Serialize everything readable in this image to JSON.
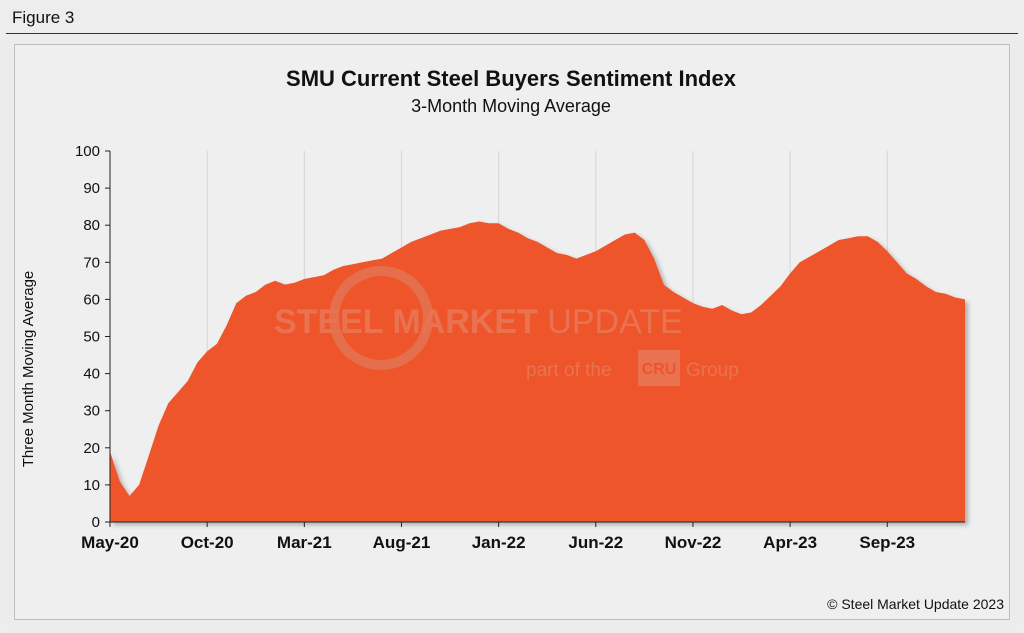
{
  "figure_label": "Figure 3",
  "copyright": "© Steel Market Update 2023",
  "watermark": {
    "line1_a": "STEEL MARKET",
    "line1_b": "UPDATE",
    "line2_a": "part of the",
    "line2_logo": "CRU",
    "line2_b": "Group"
  },
  "chart_data": {
    "type": "area",
    "title": "SMU Current Steel Buyers Sentiment Index",
    "subtitle": "3-Month Moving Average",
    "ylabel": "Three Month Moving Average",
    "xlabel": "",
    "ylim": [
      0,
      100
    ],
    "y_ticks": [
      0,
      10,
      20,
      30,
      40,
      50,
      60,
      70,
      80,
      90,
      100
    ],
    "x_tick_labels": [
      "May-20",
      "Oct-20",
      "Mar-21",
      "Aug-21",
      "Jan-22",
      "Jun-22",
      "Nov-22",
      "Apr-23",
      "Sep-23"
    ],
    "x_start": "2020-05",
    "x_end": "2023-09",
    "grid": "vertical",
    "color": "#ee5529",
    "series": [
      {
        "name": "",
        "values": [
          [
            0,
            19
          ],
          [
            0.5,
            11
          ],
          [
            1,
            7
          ],
          [
            1.5,
            10
          ],
          [
            2,
            18
          ],
          [
            2.5,
            26
          ],
          [
            3,
            32
          ],
          [
            3.5,
            35
          ],
          [
            4,
            38
          ],
          [
            4.5,
            43
          ],
          [
            5,
            46
          ],
          [
            5.5,
            48
          ],
          [
            6,
            53
          ],
          [
            6.5,
            59
          ],
          [
            7,
            61
          ],
          [
            7.5,
            62
          ],
          [
            8,
            64
          ],
          [
            8.5,
            65
          ],
          [
            9,
            64
          ],
          [
            9.5,
            64.5
          ],
          [
            10,
            65.5
          ],
          [
            10.5,
            66
          ],
          [
            11,
            66.5
          ],
          [
            11.5,
            68
          ],
          [
            12,
            69
          ],
          [
            12.5,
            69.5
          ],
          [
            13,
            70
          ],
          [
            13.5,
            70.5
          ],
          [
            14,
            71
          ],
          [
            14.5,
            72.5
          ],
          [
            15,
            74
          ],
          [
            15.5,
            75.5
          ],
          [
            16,
            76.5
          ],
          [
            16.5,
            77.5
          ],
          [
            17,
            78.5
          ],
          [
            17.5,
            79
          ],
          [
            18,
            79.5
          ],
          [
            18.5,
            80.5
          ],
          [
            19,
            81
          ],
          [
            19.5,
            80.5
          ],
          [
            20,
            80.5
          ],
          [
            20.5,
            79
          ],
          [
            21,
            78
          ],
          [
            21.5,
            76.5
          ],
          [
            22,
            75.5
          ],
          [
            22.5,
            74
          ],
          [
            23,
            72.5
          ],
          [
            23.5,
            72
          ],
          [
            24,
            71
          ],
          [
            24.5,
            72
          ],
          [
            25,
            73
          ],
          [
            25.5,
            74.5
          ],
          [
            26,
            76
          ],
          [
            26.5,
            77.5
          ],
          [
            27,
            78
          ],
          [
            27.5,
            76
          ],
          [
            28,
            71
          ],
          [
            28.5,
            64
          ],
          [
            29,
            62
          ],
          [
            29.5,
            60.5
          ],
          [
            30,
            59
          ],
          [
            30.5,
            58
          ],
          [
            31,
            57.5
          ],
          [
            31.5,
            58.5
          ],
          [
            32,
            57
          ],
          [
            32.5,
            56
          ],
          [
            33,
            56.5
          ],
          [
            33.5,
            58.5
          ],
          [
            34,
            61
          ],
          [
            34.5,
            63.5
          ],
          [
            35,
            67
          ],
          [
            35.5,
            70
          ],
          [
            36,
            71.5
          ],
          [
            36.5,
            73
          ],
          [
            37,
            74.5
          ],
          [
            37.5,
            76
          ],
          [
            38,
            76.5
          ],
          [
            38.5,
            77
          ],
          [
            39,
            77
          ],
          [
            39.5,
            75.5
          ],
          [
            40,
            73
          ],
          [
            40.5,
            70
          ],
          [
            41,
            67
          ],
          [
            41.5,
            65.5
          ],
          [
            42,
            63.5
          ],
          [
            42.5,
            62
          ],
          [
            43,
            61.5
          ],
          [
            43.5,
            60.5
          ],
          [
            44,
            60
          ]
        ]
      }
    ]
  }
}
